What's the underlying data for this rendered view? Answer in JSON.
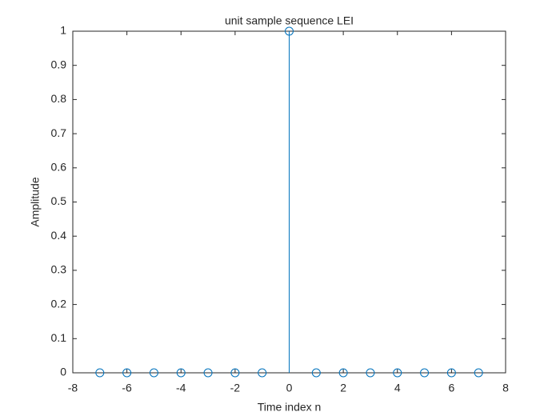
{
  "chart_data": {
    "type": "stem",
    "title": "unit sample sequence LEI",
    "x_label": "Time index n",
    "y_label": "Amplitude",
    "x": [
      -7,
      -6,
      -5,
      -4,
      -3,
      -2,
      -1,
      0,
      1,
      2,
      3,
      4,
      5,
      6,
      7
    ],
    "values": [
      0,
      0,
      0,
      0,
      0,
      0,
      0,
      1,
      0,
      0,
      0,
      0,
      0,
      0,
      0
    ],
    "color": "#0072bd",
    "xlim": [
      -8,
      8
    ],
    "xticks": [
      -8,
      -6,
      -4,
      -2,
      0,
      2,
      4,
      6,
      8
    ],
    "ylim": [
      0,
      1
    ],
    "yticks": [
      0,
      0.1,
      0.2,
      0.3,
      0.4,
      0.5,
      0.6,
      0.7,
      0.8,
      0.9,
      1
    ],
    "grid": false
  }
}
